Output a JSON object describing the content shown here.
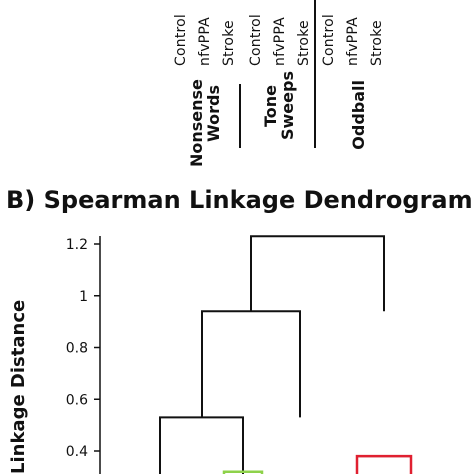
{
  "header": {
    "groups": [
      {
        "label_line1": "Nonsense",
        "label_line2": "Words",
        "conditions": [
          "Control",
          "nfvPPA",
          "Stroke"
        ]
      },
      {
        "label_line1": "Tone",
        "label_line2": "Sweeps",
        "conditions": [
          "Control",
          "nfvPPA",
          "Stroke"
        ]
      },
      {
        "label_line1": "Oddball",
        "label_line2": "",
        "conditions": [
          "Control",
          "nfvPPA",
          "Stroke"
        ]
      }
    ]
  },
  "section_title": "B) Spearman Linkage Dendrogram",
  "chart_data": {
    "type": "dendrogram",
    "title": "B) Spearman Linkage Dendrogram",
    "ylabel": "Linkage Distance",
    "yticks": [
      0.4,
      0.6,
      0.8,
      1,
      1.2
    ],
    "ylim": [
      0.38,
      1.25
    ],
    "links": [
      {
        "from_height": 0.3,
        "to_height": 0.53,
        "left_x": 160,
        "right_x": 243
      },
      {
        "from_height": 0.53,
        "to_height": 0.94,
        "left_x": 202,
        "right_x": 300
      },
      {
        "from_height": 0.94,
        "to_height": 1.23,
        "left_x": 251,
        "right_x": 384
      },
      {
        "from_height": 0.3,
        "to_height": 0.38,
        "left_x": 357,
        "right_x": 411
      }
    ],
    "colored_links": [
      {
        "height": 0.32,
        "left_x": 224,
        "right_x": 262,
        "color": "#8ed24a"
      },
      {
        "height": 0.38,
        "left_x": 357,
        "right_x": 411,
        "color": "#e02030"
      }
    ]
  }
}
